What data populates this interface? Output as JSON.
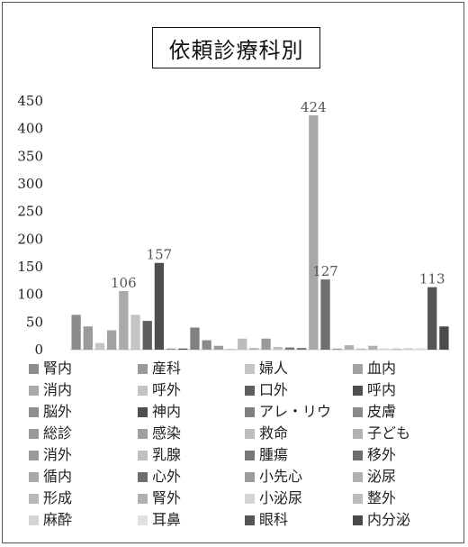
{
  "chart_data": {
    "type": "bar",
    "title": "依頼診療科別",
    "ylim": [
      0,
      450
    ],
    "yticks": [
      0,
      50,
      100,
      150,
      200,
      250,
      300,
      350,
      400,
      450
    ],
    "grid": false,
    "legend_position": "bottom",
    "categories": [
      "腎内",
      "産科",
      "婦人",
      "血内",
      "消内",
      "呼外",
      "口外",
      "呼内",
      "脳外",
      "神内",
      "アレ・リウ",
      "皮膚",
      "総診",
      "感染",
      "救命",
      "子ども",
      "消外",
      "乳腺",
      "腫瘍",
      "移外",
      "循内",
      "心外",
      "小先心",
      "泌尿",
      "形成",
      "腎外",
      "小泌尿",
      "整外",
      "麻酔",
      "耳鼻",
      "眼科",
      "内分泌"
    ],
    "values": [
      63,
      42,
      12,
      35,
      106,
      63,
      52,
      157,
      2,
      2,
      40,
      17,
      7,
      1,
      20,
      3,
      20,
      5,
      4,
      3,
      424,
      127,
      2,
      8,
      2,
      7,
      2,
      2,
      3,
      3,
      113,
      42
    ],
    "colors": [
      "#8c8c8c",
      "#9a9a9a",
      "#c4c4c4",
      "#a2a2a2",
      "#aaaaaa",
      "#c4c4c4",
      "#5e5e5e",
      "#4f4f4f",
      "#8e8e8e",
      "#4f4f4f",
      "#808080",
      "#8a8a8a",
      "#9a9a9a",
      "#a0a0a0",
      "#bdbdbd",
      "#b2b2b2",
      "#9a9a9a",
      "#c0c0c0",
      "#777777",
      "#6e6e6e",
      "#a8a8a8",
      "#6e6e6e",
      "#9c9c9c",
      "#b0b0b0",
      "#b8b8b8",
      "#b0b0b0",
      "#d4d4d4",
      "#bcbcbc",
      "#d4d4d4",
      "#e0e0e0",
      "#555555",
      "#4a4a4a"
    ],
    "data_labels": {
      "4": "106",
      "7": "157",
      "20": "424",
      "21": "127",
      "30": "113"
    }
  }
}
